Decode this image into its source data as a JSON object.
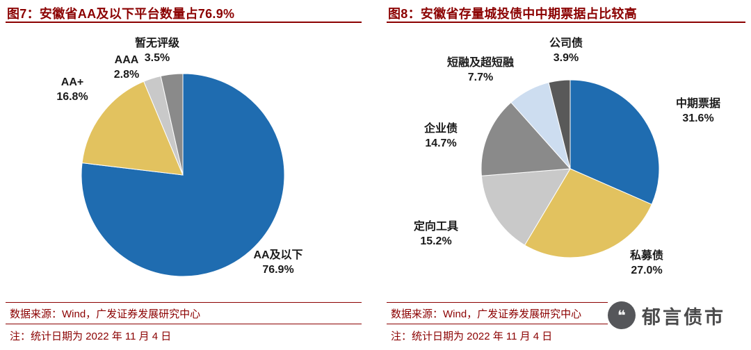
{
  "panels": [
    {
      "source": "数据来源：Wind，广发证券发展研究中心",
      "note": "注：统计日期为 2022 年 11 月 4 日"
    },
    {
      "source": "数据来源：Wind，广发证券发展研究中心",
      "note": "注：统计日期为 2022 年 11 月 4 日"
    }
  ],
  "logo": {
    "text": "郁言债市",
    "quote_glyph": "❝"
  },
  "colors": {
    "accent_red": "#8b0000",
    "pie_blue": "#1f6cb0",
    "pie_yellow": "#e2c25f",
    "pie_light_gray": "#c9c9c9",
    "pie_dark_gray": "#8a8a8a",
    "pie_light_blue": "#cdddf0",
    "pie_charcoal": "#595959",
    "logo_gray": "#4a4a4b"
  },
  "chart_data": [
    {
      "type": "pie",
      "title": "图7：安徽省AA及以下平台数量占76.9%",
      "start_angle_deg": -90,
      "direction": "clockwise",
      "legend": "none",
      "labels_position": "outside",
      "slices": [
        {
          "name": "AA及以下",
          "value": 76.9,
          "pct_label": "76.9%",
          "color": "#1f6cb0"
        },
        {
          "name": "AA+",
          "value": 16.8,
          "pct_label": "16.8%",
          "color": "#e2c25f"
        },
        {
          "name": "AAA",
          "value": 2.8,
          "pct_label": "2.8%",
          "color": "#c9c9c9"
        },
        {
          "name": "暂无评级",
          "value": 3.5,
          "pct_label": "3.5%",
          "color": "#8a8a8a"
        }
      ]
    },
    {
      "type": "pie",
      "title": "图8：安徽省存量城投债中中期票据占比较高",
      "start_angle_deg": -90,
      "direction": "clockwise",
      "legend": "none",
      "labels_position": "outside",
      "slices": [
        {
          "name": "中期票据",
          "value": 31.6,
          "pct_label": "31.6%",
          "color": "#1f6cb0"
        },
        {
          "name": "私募债",
          "value": 27.0,
          "pct_label": "27.0%",
          "color": "#e2c25f"
        },
        {
          "name": "定向工具",
          "value": 15.2,
          "pct_label": "15.2%",
          "color": "#c9c9c9"
        },
        {
          "name": "企业债",
          "value": 14.7,
          "pct_label": "14.7%",
          "color": "#8a8a8a"
        },
        {
          "name": "短融及超短融",
          "value": 7.7,
          "pct_label": "7.7%",
          "color": "#cdddf0"
        },
        {
          "name": "公司债",
          "value": 3.9,
          "pct_label": "3.9%",
          "color": "#595959"
        }
      ]
    }
  ]
}
